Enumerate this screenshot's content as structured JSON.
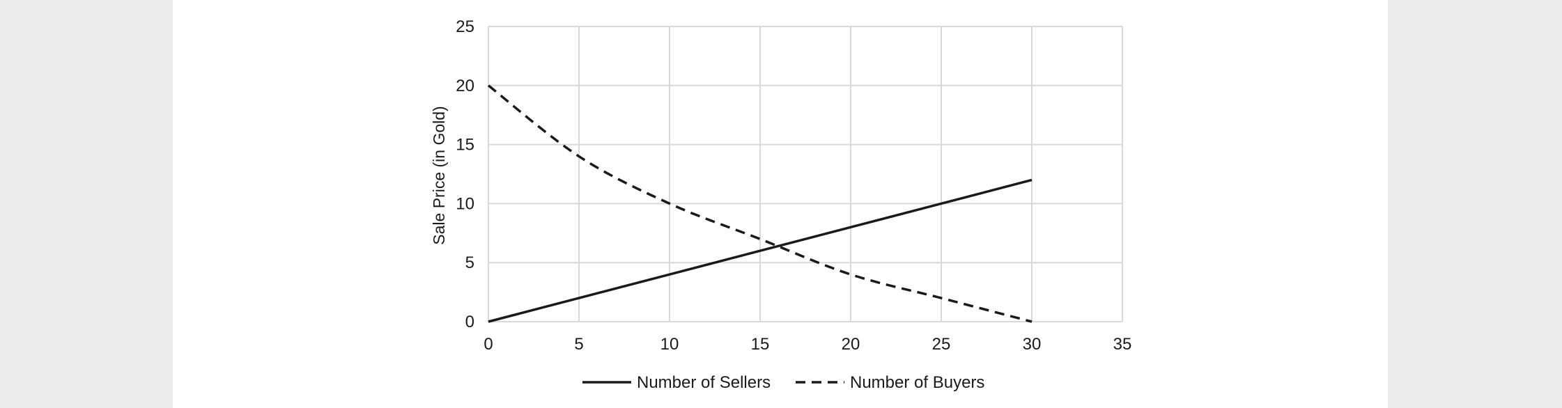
{
  "chart_data": {
    "type": "line",
    "title": "",
    "xlabel": "",
    "ylabel": "Sale Price (in Gold)",
    "xlim": [
      0,
      35
    ],
    "ylim": [
      0,
      25
    ],
    "xticks": [
      0,
      5,
      10,
      15,
      20,
      25,
      30,
      35
    ],
    "yticks": [
      0,
      5,
      10,
      15,
      20,
      25
    ],
    "grid": true,
    "legend_position": "bottom",
    "series": [
      {
        "name": "Number of Sellers",
        "style": "solid",
        "color": "#1a1a1a",
        "points": [
          [
            0,
            0
          ],
          [
            5,
            2
          ],
          [
            10,
            4
          ],
          [
            15,
            6
          ],
          [
            20,
            8
          ],
          [
            25,
            10
          ],
          [
            30,
            12
          ]
        ]
      },
      {
        "name": "Number of Buyers",
        "style": "dashed",
        "color": "#1a1a1a",
        "points": [
          [
            0,
            20
          ],
          [
            5,
            14
          ],
          [
            10,
            10
          ],
          [
            15,
            7
          ],
          [
            20,
            4
          ],
          [
            25,
            2
          ],
          [
            30,
            0
          ]
        ]
      }
    ]
  }
}
